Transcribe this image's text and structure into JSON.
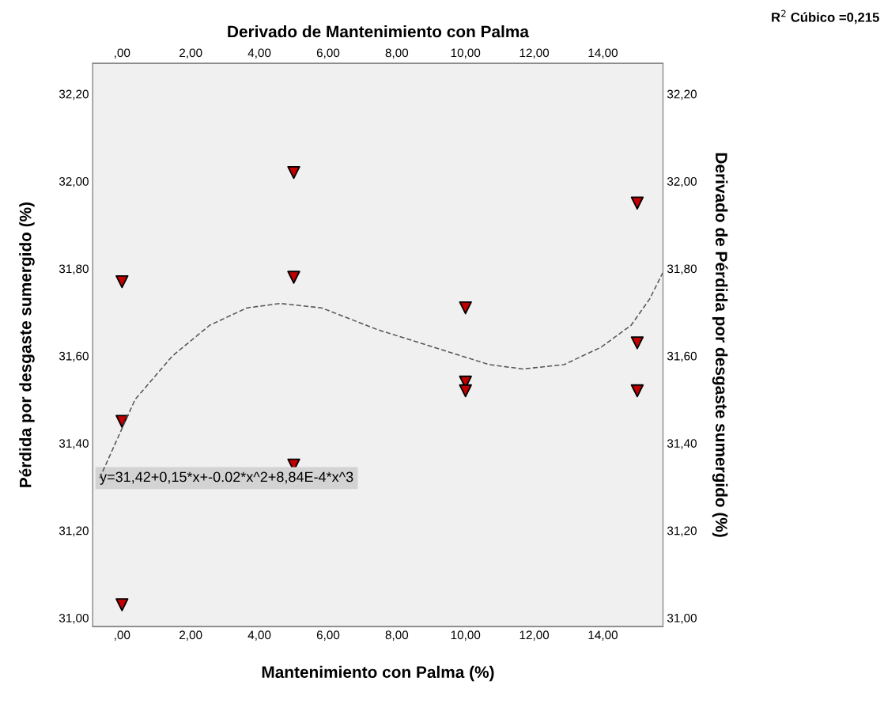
{
  "chart_data": {
    "type": "scatter",
    "xlabel": "Mantenimiento con Palma (%)",
    "ylabel": "Pérdida por desgaste sumergido (%)",
    "x2label": "Derivado de Mantenimiento con Palma",
    "y2label": "Derivado de Pérdida por desgaste sumergido (%)",
    "annotations": [
      "R$^{2}$ Cúbico =0,215",
      {
        "text": "y=31,42+0,15*x+-0.02*x^2+8,84E-4*x^3",
        "x": -0.65,
        "y": 31.32
      }
    ],
    "xlim": [
      -0.85,
      15.75
    ],
    "ylim": [
      30.98,
      32.27
    ],
    "xticks": [
      {
        "value": 0,
        "label": ",00"
      },
      {
        "value": 2,
        "label": "2,00"
      },
      {
        "value": 4,
        "label": "4,00"
      },
      {
        "value": 6,
        "label": "6,00"
      },
      {
        "value": 8,
        "label": "8,00"
      },
      {
        "value": 10,
        "label": "10,00"
      },
      {
        "value": 12,
        "label": "12,00"
      },
      {
        "value": 14,
        "label": "14,00"
      }
    ],
    "x2lim": [
      -0.85,
      15.75
    ],
    "x2ticks": [
      {
        "value": 0,
        "label": ",00"
      },
      {
        "value": 2,
        "label": "2,00"
      },
      {
        "value": 4,
        "label": "4,00"
      },
      {
        "value": 6,
        "label": "6,00"
      },
      {
        "value": 8,
        "label": "8,00"
      },
      {
        "value": 10,
        "label": "10,00"
      },
      {
        "value": 12,
        "label": "12,00"
      },
      {
        "value": 14,
        "label": "14,00"
      }
    ],
    "yticks": [
      {
        "value": 31.0,
        "label": "31,00"
      },
      {
        "value": 31.2,
        "label": "31,20"
      },
      {
        "value": 31.4,
        "label": "31,40"
      },
      {
        "value": 31.6,
        "label": "31,60"
      },
      {
        "value": 31.8,
        "label": "31,80"
      },
      {
        "value": 32.0,
        "label": "32,00"
      },
      {
        "value": 32.2,
        "label": "32,20"
      }
    ],
    "y2lim": [
      30.98,
      32.27
    ],
    "y2ticks": [
      {
        "value": 31.0,
        "label": "31,00"
      },
      {
        "value": 31.2,
        "label": "31,20"
      },
      {
        "value": 31.4,
        "label": "31,40"
      },
      {
        "value": 31.6,
        "label": "31,60"
      },
      {
        "value": 31.8,
        "label": "31,80"
      },
      {
        "value": 32.0,
        "label": "32,00"
      },
      {
        "value": 32.2,
        "label": "32,20"
      }
    ],
    "grid": false,
    "legend": false,
    "series": [
      {
        "color": "#c00000",
        "marker": "triangle",
        "x": [
          0,
          0,
          0,
          5,
          5,
          5,
          10,
          10,
          10,
          15,
          15,
          15
        ],
        "values": [
          31.77,
          31.45,
          31.03,
          32.02,
          31.78,
          31.35,
          31.71,
          31.54,
          31.52,
          31.95,
          31.63,
          31.52
        ]
      },
      {
        "type": "line",
        "color": "#555555",
        "line_style": "dashed",
        "marker": "none",
        "x": [
          -0.65,
          0.38,
          1.47,
          2.55,
          3.64,
          4.61,
          5.81,
          7.44,
          9.07,
          10.69,
          11.67,
          12.87,
          13.95,
          14.82,
          15.36,
          15.74
        ],
        "values": [
          31.32,
          31.5,
          31.6,
          31.67,
          31.71,
          31.72,
          31.71,
          31.66,
          31.62,
          31.58,
          31.57,
          31.58,
          31.62,
          31.67,
          31.73,
          31.79
        ]
      }
    ]
  }
}
